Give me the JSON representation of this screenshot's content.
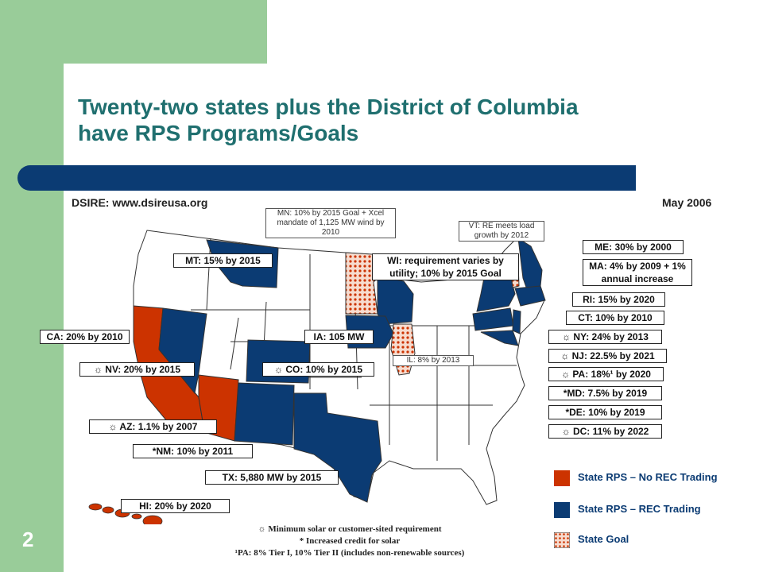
{
  "slide": {
    "page_number": "2",
    "title_line1": "Twenty-two states plus the District of Columbia",
    "title_line2": "have RPS Programs/Goals",
    "source": "DSIRE: www.dsireusa.org",
    "date": "May 2006"
  },
  "colors": {
    "rps_no_rec": "#cc3300",
    "rps_rec": "#0b3b73",
    "goal": "#e89a7a",
    "sidebar": "#99cc99",
    "title": "#1f6f6f"
  },
  "sun_symbol": "☼",
  "labels": {
    "mn": "MN: 10% by 2015 Goal + Xcel mandate of 1,125 MW wind by 2010",
    "vt": "VT: RE meets load growth by 2012",
    "me": "ME: 30% by 2000",
    "mt": "MT: 15% by 2015",
    "wi": "WI: requirement varies by utility; 10% by 2015 Goal",
    "ma": "MA: 4% by 2009 + 1% annual increase",
    "ri": "RI: 15% by 2020",
    "ct": "CT: 10% by 2010",
    "ca": "CA: 20% by 2010",
    "ia": "IA: 105 MW",
    "ny": "NY: 24% by 2013",
    "il": "IL: 8% by 2013",
    "nj": "NJ: 22.5% by 2021",
    "nv": "NV: 20% by 2015",
    "co": "CO: 10% by 2015",
    "pa": "PA: 18%¹ by 2020",
    "md": "*MD: 7.5% by 2019",
    "de": "*DE: 10% by 2019",
    "az": "AZ: 1.1% by 2007",
    "dc": "DC: 11% by 2022",
    "nm": "*NM: 10% by 2011",
    "tx": "TX: 5,880 MW by 2015",
    "hi": "HI: 20% by 2020"
  },
  "legend": [
    {
      "label": "State RPS – No REC Trading",
      "kind": "rps_no_rec"
    },
    {
      "label": "State RPS – REC Trading",
      "kind": "rps_rec"
    },
    {
      "label": "State Goal",
      "kind": "goal"
    }
  ],
  "footnotes": {
    "line1": "Minimum solar or customer-sited requirement",
    "line2": "* Increased credit for solar",
    "line3": "¹PA: 8% Tier I, 10% Tier II (includes non-renewable sources)"
  }
}
